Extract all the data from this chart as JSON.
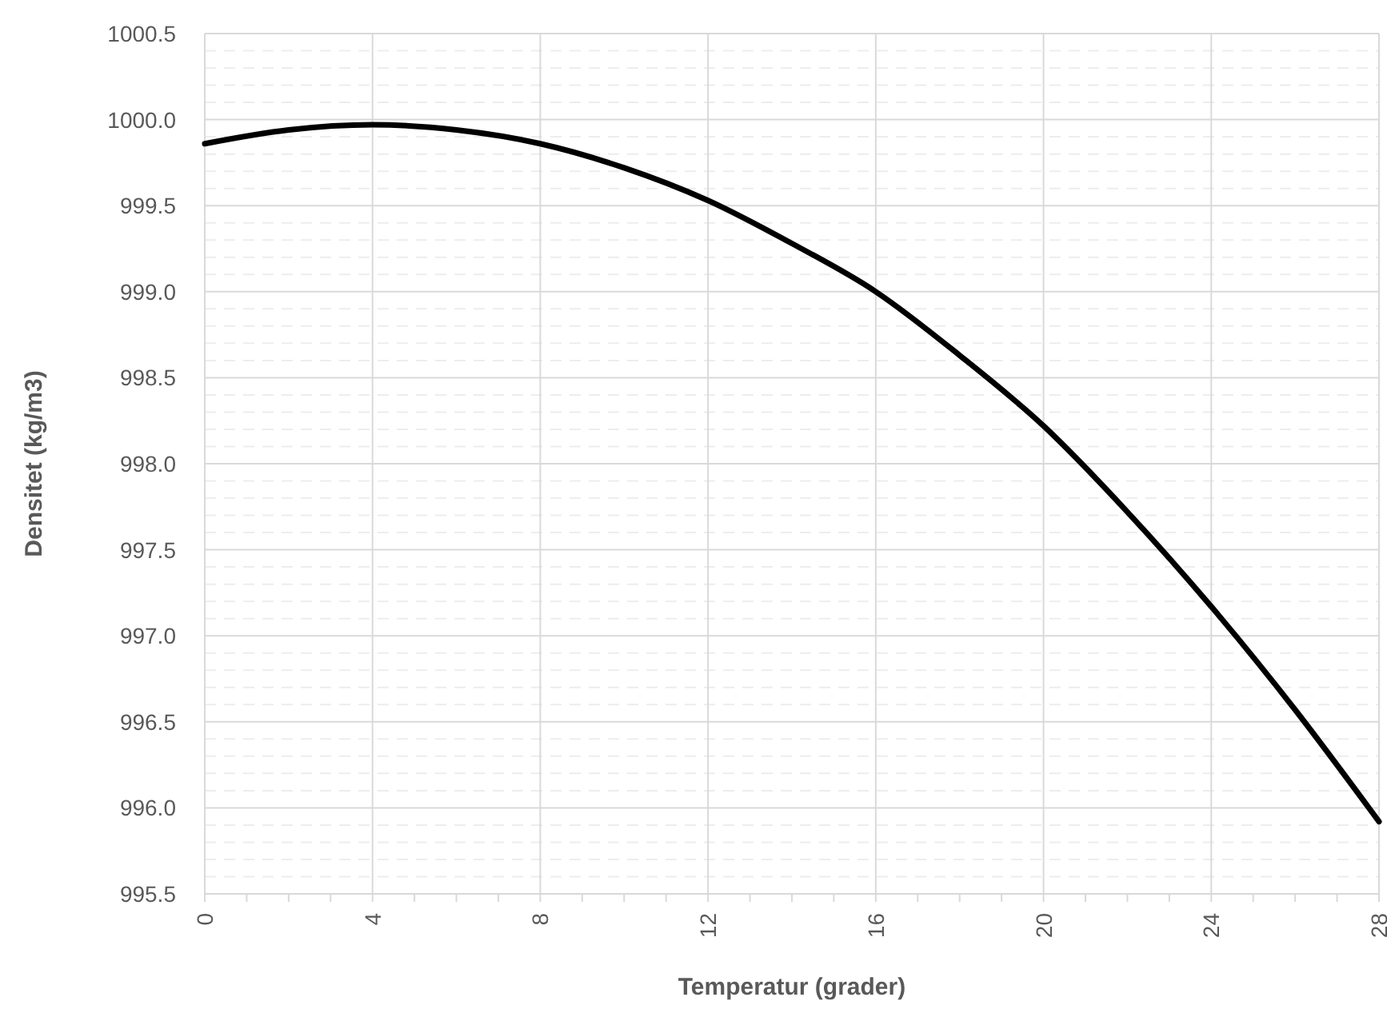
{
  "chart_data": {
    "type": "line",
    "xlabel": "Temperatur (grader)",
    "ylabel": "Densitet (kg/m3)",
    "x": [
      0,
      2,
      4,
      6,
      8,
      10,
      12,
      14,
      16,
      18,
      20,
      22,
      24,
      26,
      28
    ],
    "series": [
      {
        "color": "#000000",
        "values": [
          999.86,
          999.94,
          999.97,
          999.94,
          999.86,
          999.72,
          999.53,
          999.28,
          999.0,
          998.63,
          998.22,
          997.72,
          997.17,
          996.57,
          995.92
        ]
      }
    ],
    "xlim": [
      0,
      28
    ],
    "xticks": [
      0,
      {
        "value": 1,
        "label": null
      },
      {
        "value": 2,
        "label": null
      },
      {
        "value": 3,
        "label": null
      },
      4,
      {
        "value": 5,
        "label": null
      },
      {
        "value": 6,
        "label": null
      },
      {
        "value": 7,
        "label": null
      },
      8,
      {
        "value": 9,
        "label": null
      },
      {
        "value": 10,
        "label": null
      },
      {
        "value": 11,
        "label": null
      },
      12,
      {
        "value": 13,
        "label": null
      },
      {
        "value": 14,
        "label": null
      },
      {
        "value": 15,
        "label": null
      },
      16,
      {
        "value": 17,
        "label": null
      },
      {
        "value": 18,
        "label": null
      },
      {
        "value": 19,
        "label": null
      },
      20,
      {
        "value": 21,
        "label": null
      },
      {
        "value": 22,
        "label": null
      },
      {
        "value": 23,
        "label": null
      },
      24,
      {
        "value": 25,
        "label": null
      },
      {
        "value": 26,
        "label": null
      },
      {
        "value": 27,
        "label": null
      },
      28
    ],
    "ylim": [
      995.5,
      1000.5
    ],
    "yticks": [
      995.5,
      {
        "value": 995.6,
        "label": null
      },
      {
        "value": 995.7,
        "label": null
      },
      {
        "value": 995.8,
        "label": null
      },
      {
        "value": 995.9,
        "label": null
      },
      {
        "value": 996,
        "label": "996.0"
      },
      {
        "value": 996.1,
        "label": null
      },
      {
        "value": 996.2,
        "label": null
      },
      {
        "value": 996.3,
        "label": null
      },
      {
        "value": 996.4,
        "label": null
      },
      996.5,
      {
        "value": 996.6,
        "label": null
      },
      {
        "value": 996.7,
        "label": null
      },
      {
        "value": 996.8,
        "label": null
      },
      {
        "value": 996.9,
        "label": null
      },
      {
        "value": 997,
        "label": "997.0"
      },
      {
        "value": 997.1,
        "label": null
      },
      {
        "value": 997.2,
        "label": null
      },
      {
        "value": 997.3,
        "label": null
      },
      {
        "value": 997.4,
        "label": null
      },
      997.5,
      {
        "value": 997.6,
        "label": null
      },
      {
        "value": 997.7,
        "label": null
      },
      {
        "value": 997.8,
        "label": null
      },
      {
        "value": 997.9,
        "label": null
      },
      {
        "value": 998,
        "label": "998.0"
      },
      {
        "value": 998.1,
        "label": null
      },
      {
        "value": 998.2,
        "label": null
      },
      {
        "value": 998.3,
        "label": null
      },
      {
        "value": 998.4,
        "label": null
      },
      998.5,
      {
        "value": 998.6,
        "label": null
      },
      {
        "value": 998.7,
        "label": null
      },
      {
        "value": 998.8,
        "label": null
      },
      {
        "value": 998.9,
        "label": null
      },
      {
        "value": 999,
        "label": "999.0"
      },
      {
        "value": 999.1,
        "label": null
      },
      {
        "value": 999.2,
        "label": null
      },
      {
        "value": 999.3,
        "label": null
      },
      {
        "value": 999.4,
        "label": null
      },
      999.5,
      {
        "value": 999.6,
        "label": null
      },
      {
        "value": 999.7,
        "label": null
      },
      {
        "value": 999.8,
        "label": null
      },
      {
        "value": 999.9,
        "label": null
      },
      {
        "value": 1000,
        "label": "1000.0"
      },
      {
        "value": 1000.1,
        "label": null
      },
      {
        "value": 1000.2,
        "label": null
      },
      {
        "value": 1000.3,
        "label": null
      },
      {
        "value": 1000.4,
        "label": null
      },
      1000.5
    ],
    "grid": true,
    "marker": "none",
    "line_style": "solid"
  }
}
